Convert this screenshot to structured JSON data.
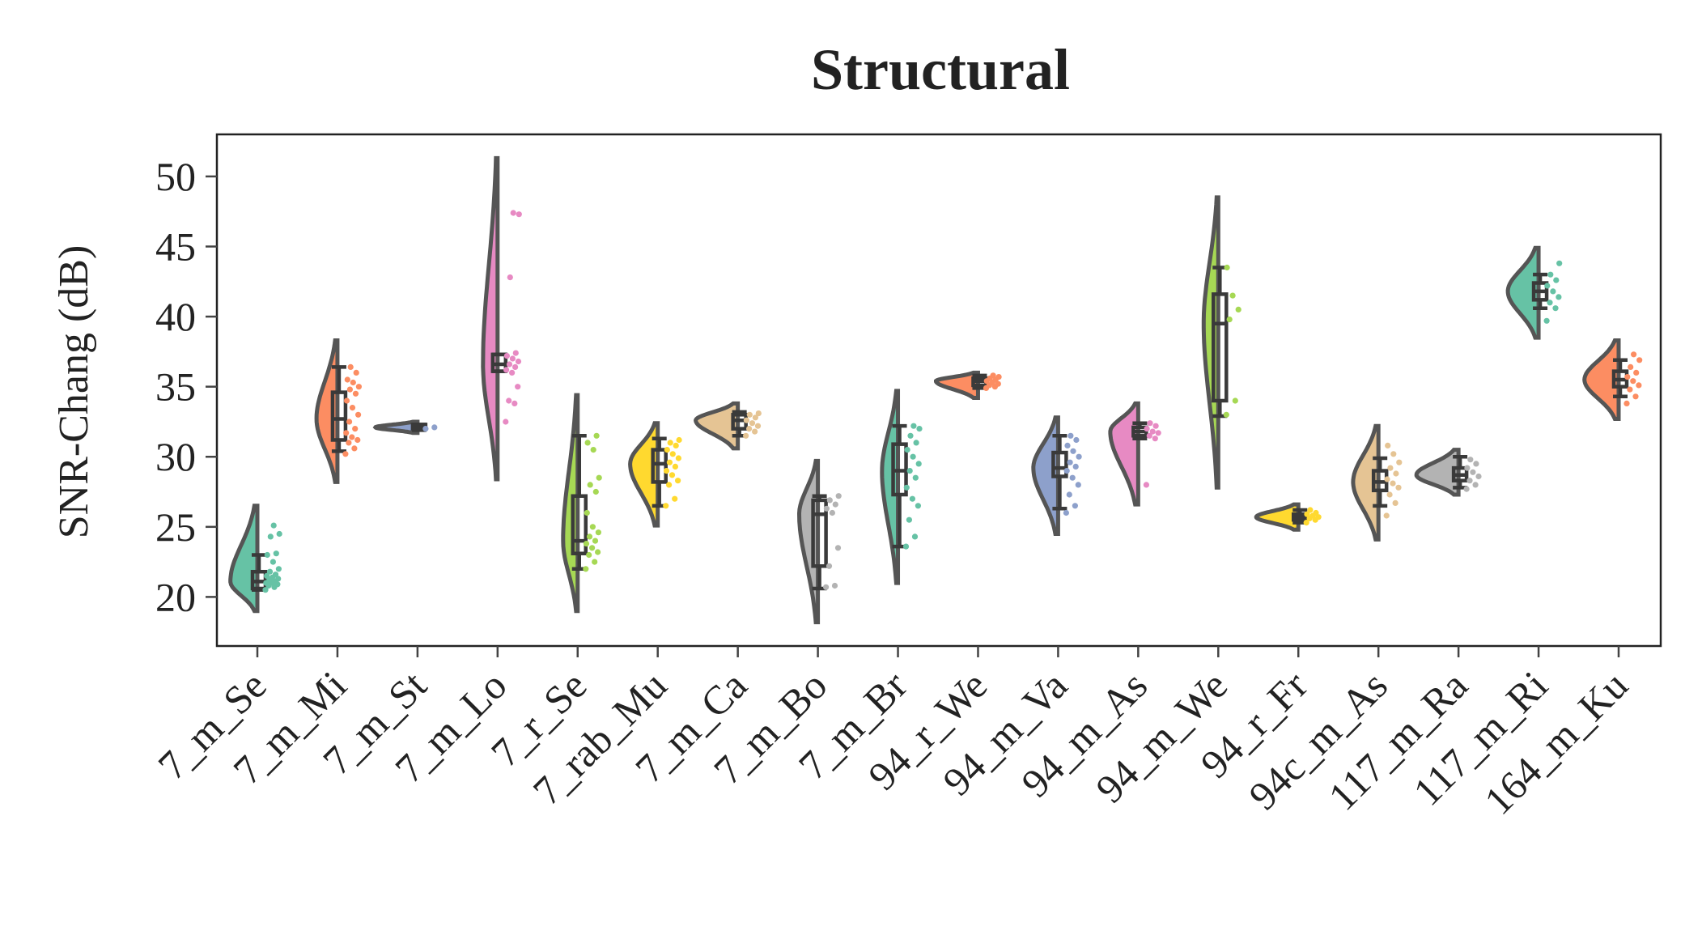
{
  "chart_data": {
    "type": "violin",
    "title": "Structural",
    "ylabel": "SNR-Chang (dB)",
    "xlabel": "",
    "ylim": [
      16.5,
      53
    ],
    "yticks": [
      20,
      25,
      30,
      35,
      40,
      45,
      50
    ],
    "grid": false,
    "legend": "none",
    "series": [
      {
        "name": "7_m_Se",
        "color": "#66c2a5",
        "vmin": 19.0,
        "vmax": 26.5,
        "q1": 20.6,
        "median": 21.1,
        "q3": 21.8,
        "wlo": 20.5,
        "whi": 23.0,
        "points": [
          20.5,
          20.7,
          20.8,
          20.9,
          21.0,
          21.0,
          21.1,
          21.2,
          21.3,
          21.4,
          21.5,
          21.6,
          21.8,
          22.0,
          22.5,
          23.0,
          23.1,
          24.3,
          24.5,
          25.1
        ]
      },
      {
        "name": "7_m_Mi",
        "color": "#fc8d62",
        "vmin": 28.2,
        "vmax": 38.3,
        "q1": 31.2,
        "median": 32.7,
        "q3": 34.6,
        "wlo": 30.4,
        "whi": 36.4,
        "points": [
          30.2,
          30.6,
          31.0,
          31.2,
          31.4,
          31.7,
          32.0,
          32.5,
          33.0,
          33.5,
          34.0,
          34.5,
          34.8,
          35.0,
          35.3,
          35.5,
          36.0,
          36.4
        ]
      },
      {
        "name": "7_m_St",
        "color": "#8da0cb",
        "vmin": 31.7,
        "vmax": 32.5,
        "q1": 32.0,
        "median": 32.1,
        "q3": 32.3,
        "wlo": 31.9,
        "whi": 32.3,
        "points": [
          32.0,
          32.1
        ]
      },
      {
        "name": "7_m_Lo",
        "color": "#e78ac3",
        "vmin": 28.4,
        "vmax": 51.3,
        "q1": 36.1,
        "median": 36.6,
        "q3": 37.3,
        "wlo": 36.1,
        "whi": 37.3,
        "points": [
          32.5,
          33.8,
          34.0,
          35.0,
          36.0,
          36.2,
          36.4,
          36.6,
          36.8,
          37.0,
          37.2,
          37.4,
          42.8,
          47.3,
          47.4
        ]
      },
      {
        "name": "7_r_Se",
        "color": "#a6d854",
        "vmin": 19.0,
        "vmax": 34.4,
        "q1": 23.1,
        "median": 24.0,
        "q3": 27.2,
        "wlo": 22.0,
        "whi": 31.5,
        "points": [
          22.0,
          22.5,
          23.0,
          23.2,
          23.5,
          23.8,
          24.0,
          24.3,
          24.6,
          25.0,
          26.0,
          27.5,
          28.0,
          28.5,
          30.5,
          31.0,
          31.5
        ]
      },
      {
        "name": "7_rab_Mu",
        "color": "#ffd92f",
        "vmin": 25.1,
        "vmax": 32.4,
        "q1": 28.2,
        "median": 29.5,
        "q3": 30.5,
        "wlo": 26.5,
        "whi": 31.3,
        "points": [
          26.5,
          27.0,
          28.0,
          28.3,
          28.7,
          29.0,
          29.3,
          29.6,
          29.9,
          30.2,
          30.5,
          30.8,
          31.0,
          31.2
        ]
      },
      {
        "name": "7_m_Ca",
        "color": "#e5c494",
        "vmin": 30.6,
        "vmax": 33.8,
        "q1": 32.0,
        "median": 32.6,
        "q3": 33.0,
        "wlo": 31.5,
        "whi": 33.2,
        "points": [
          31.5,
          31.8,
          32.0,
          32.2,
          32.4,
          32.6,
          32.8,
          33.0,
          33.1
        ]
      },
      {
        "name": "7_m_Bo",
        "color": "#b3b3b3",
        "vmin": 18.2,
        "vmax": 29.7,
        "q1": 22.2,
        "median": 25.9,
        "q3": 26.9,
        "wlo": 20.6,
        "whi": 27.2,
        "points": [
          20.7,
          20.8,
          22.2,
          23.5,
          26.0,
          26.3,
          26.6,
          26.9,
          27.2
        ]
      },
      {
        "name": "7_m_Br",
        "color": "#66c2a5",
        "vmin": 21.0,
        "vmax": 34.7,
        "q1": 27.3,
        "median": 29.0,
        "q3": 30.9,
        "wlo": 23.6,
        "whi": 32.2,
        "points": [
          23.6,
          24.3,
          25.5,
          26.5,
          27.0,
          27.8,
          28.5,
          29.0,
          29.5,
          30.0,
          30.5,
          31.0,
          31.5,
          32.0,
          32.2
        ]
      },
      {
        "name": "94_r_We",
        "color": "#fc8d62",
        "vmin": 34.2,
        "vmax": 36.0,
        "q1": 35.1,
        "median": 35.4,
        "q3": 35.6,
        "wlo": 34.9,
        "whi": 35.8,
        "points": [
          34.9,
          35.0,
          35.1,
          35.2,
          35.3,
          35.4,
          35.5,
          35.6,
          35.7,
          35.8
        ]
      },
      {
        "name": "94_m_Va",
        "color": "#8da0cb",
        "vmin": 24.5,
        "vmax": 32.8,
        "q1": 28.6,
        "median": 29.2,
        "q3": 30.3,
        "wlo": 26.3,
        "whi": 31.5,
        "points": [
          26.0,
          26.5,
          27.3,
          28.0,
          28.5,
          29.0,
          29.3,
          29.6,
          30.0,
          30.4,
          30.8,
          31.2,
          31.5
        ]
      },
      {
        "name": "94_m_As",
        "color": "#e78ac3",
        "vmin": 26.6,
        "vmax": 33.8,
        "q1": 31.5,
        "median": 31.8,
        "q3": 32.1,
        "wlo": 31.3,
        "whi": 32.4,
        "points": [
          28.0,
          31.3,
          31.5,
          31.7,
          31.8,
          32.0,
          32.2,
          32.4
        ]
      },
      {
        "name": "94_m_We",
        "color": "#a6d854",
        "vmin": 27.8,
        "vmax": 48.5,
        "q1": 34.0,
        "median": 39.5,
        "q3": 41.6,
        "wlo": 32.9,
        "whi": 43.5,
        "points": [
          33.0,
          34.0,
          39.8,
          40.5,
          41.5,
          43.5
        ]
      },
      {
        "name": "94_r_Fr",
        "color": "#ffd92f",
        "vmin": 24.8,
        "vmax": 26.6,
        "q1": 25.5,
        "median": 25.7,
        "q3": 25.9,
        "wlo": 25.3,
        "whi": 26.2,
        "points": [
          25.3,
          25.5,
          25.6,
          25.7,
          25.8,
          25.9,
          26.0,
          26.2
        ]
      },
      {
        "name": "94c_m_As",
        "color": "#e5c494",
        "vmin": 24.1,
        "vmax": 32.2,
        "q1": 27.6,
        "median": 28.2,
        "q3": 29.0,
        "wlo": 26.5,
        "whi": 29.9,
        "points": [
          25.8,
          26.7,
          27.3,
          27.8,
          28.1,
          28.4,
          28.8,
          29.2,
          29.6,
          30.2,
          30.8
        ]
      },
      {
        "name": "117_m_Ra",
        "color": "#b3b3b3",
        "vmin": 27.3,
        "vmax": 30.5,
        "q1": 28.3,
        "median": 28.7,
        "q3": 29.2,
        "wlo": 27.8,
        "whi": 30.0,
        "points": [
          27.7,
          28.0,
          28.3,
          28.6,
          28.9,
          29.2,
          29.5,
          29.8
        ]
      },
      {
        "name": "117_m_Ri",
        "color": "#66c2a5",
        "vmin": 38.5,
        "vmax": 44.9,
        "q1": 41.2,
        "median": 41.8,
        "q3": 42.4,
        "wlo": 40.6,
        "whi": 43.0,
        "points": [
          39.7,
          40.6,
          41.0,
          41.4,
          41.8,
          42.2,
          42.6,
          43.0,
          43.8
        ]
      },
      {
        "name": "164_m_Ku",
        "color": "#fc8d62",
        "vmin": 32.7,
        "vmax": 38.3,
        "q1": 35.0,
        "median": 35.5,
        "q3": 36.1,
        "wlo": 34.3,
        "whi": 36.9,
        "points": [
          33.8,
          34.3,
          34.8,
          35.1,
          35.4,
          35.7,
          36.0,
          36.4,
          36.9,
          37.3
        ]
      }
    ]
  }
}
